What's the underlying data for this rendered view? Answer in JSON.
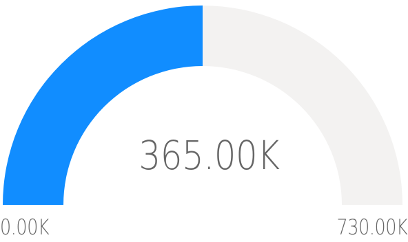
{
  "chart_data": {
    "type": "gauge",
    "title": "",
    "min": 0,
    "max": 730,
    "value": 365,
    "unit": "K",
    "labels": {
      "value": "365.00K",
      "min": "0.00K",
      "max": "730.00K"
    },
    "colors": {
      "fill": "#118dff",
      "track": "#f3f2f1",
      "text": "#666666"
    }
  }
}
